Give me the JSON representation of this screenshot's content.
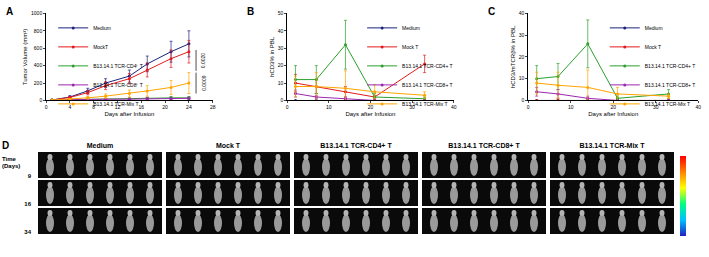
{
  "chart_data": [
    {
      "type": "line",
      "title": "A",
      "x_label": "Days after Infusion",
      "y_label": "Tumor Volume (mm³)",
      "xlim": [
        0,
        28
      ],
      "xticks": [
        0,
        4,
        8,
        12,
        16,
        20,
        24,
        28
      ],
      "ylim": [
        0,
        1000
      ],
      "yticks": [
        0,
        200,
        400,
        600,
        800,
        1000
      ],
      "legend": "upper left",
      "marker": "circle",
      "annotations": [
        "0.0020",
        "0.0009"
      ],
      "x": [
        1,
        4,
        7,
        10,
        14,
        17,
        21,
        24
      ],
      "series": [
        {
          "name": "Medium",
          "color": "#1a237e",
          "values": [
            5,
            40,
            110,
            200,
            280,
            420,
            560,
            650
          ],
          "errors": [
            3,
            15,
            30,
            50,
            70,
            90,
            120,
            150
          ]
        },
        {
          "name": "MockT",
          "color": "#e41a1c",
          "values": [
            5,
            35,
            90,
            170,
            250,
            350,
            480,
            560
          ],
          "errors": [
            3,
            12,
            25,
            45,
            60,
            80,
            100,
            130
          ]
        },
        {
          "name": "B13.14.1 TCR-CD4⁺ T",
          "color": "#2ca02c",
          "values": [
            5,
            10,
            15,
            15,
            20,
            25,
            30,
            30
          ],
          "errors": [
            2,
            5,
            8,
            8,
            10,
            12,
            15,
            15
          ]
        },
        {
          "name": "B13.14.1 TCR-CD8⁺ T",
          "color": "#9c27b0",
          "values": [
            5,
            10,
            10,
            15,
            15,
            20,
            20,
            25
          ],
          "errors": [
            2,
            5,
            5,
            8,
            8,
            10,
            10,
            12
          ]
        },
        {
          "name": "B13.14.1 TCR-Mix T",
          "color": "#ffa500",
          "values": [
            5,
            15,
            30,
            50,
            80,
            110,
            150,
            200
          ],
          "errors": [
            3,
            8,
            15,
            25,
            40,
            60,
            80,
            120
          ]
        }
      ]
    },
    {
      "type": "line",
      "title": "B",
      "x_label": "Days after Infusion",
      "y_label": "hCD3% in PBL",
      "xlim": [
        0,
        40
      ],
      "xticks": [
        0,
        10,
        20,
        30,
        40
      ],
      "ylim": [
        0,
        50
      ],
      "yticks": [
        0,
        10,
        20,
        30,
        40,
        50
      ],
      "legend": "upper right",
      "marker": "circle",
      "x": [
        2,
        7,
        14,
        21,
        33
      ],
      "series": [
        {
          "name": "Medium",
          "color": "#1a237e",
          "values": [
            0,
            0,
            0,
            0,
            0
          ],
          "errors": [
            0,
            0,
            0,
            0,
            0
          ]
        },
        {
          "name": "Mock T",
          "color": "#e41a1c",
          "values": [
            10,
            8,
            5,
            2,
            21
          ],
          "errors": [
            5,
            4,
            3,
            1,
            5
          ]
        },
        {
          "name": "B13.14.1 TCR-CD4+ T",
          "color": "#2ca02c",
          "values": [
            12,
            12,
            32,
            2,
            1
          ],
          "errors": [
            8,
            8,
            14,
            2,
            1
          ]
        },
        {
          "name": "B13.14.1 TCR-CD8+ T",
          "color": "#9c27b0",
          "values": [
            4,
            2,
            1,
            0,
            0
          ],
          "errors": [
            2,
            1,
            1,
            0,
            0
          ]
        },
        {
          "name": "B13.14.1 TCR-Mix T",
          "color": "#ffa500",
          "values": [
            8,
            8,
            7,
            5,
            3
          ],
          "errors": [
            6,
            8,
            10,
            4,
            2
          ]
        }
      ]
    },
    {
      "type": "line",
      "title": "C",
      "x_label": "Days after Infusion",
      "y_label": "hCD3/mTCRβ% in PBL",
      "xlim": [
        0,
        40
      ],
      "xticks": [
        0,
        10,
        20,
        30,
        40
      ],
      "ylim": [
        0,
        40
      ],
      "yticks": [
        0,
        10,
        20,
        30,
        40
      ],
      "legend": "upper right",
      "marker": "circle",
      "x": [
        2,
        7,
        14,
        21,
        33
      ],
      "series": [
        {
          "name": "Medium",
          "color": "#1a237e",
          "values": [
            0,
            0,
            0,
            0,
            0
          ],
          "errors": [
            0,
            0,
            0,
            0,
            0
          ]
        },
        {
          "name": "Mock T",
          "color": "#e41a1c",
          "values": [
            0,
            0,
            0,
            0,
            0
          ],
          "errors": [
            0,
            0,
            0,
            0,
            0
          ]
        },
        {
          "name": "B13.14.1 TCR-CD4+ T",
          "color": "#2ca02c",
          "values": [
            10,
            11,
            26,
            1,
            3
          ],
          "errors": [
            6,
            6,
            11,
            1,
            2
          ]
        },
        {
          "name": "B13.14.1 TCR-CD8+ T",
          "color": "#9c27b0",
          "values": [
            4,
            3,
            1,
            0,
            0
          ],
          "errors": [
            2,
            2,
            1,
            0,
            0
          ]
        },
        {
          "name": "B13.14.1 TCR-Mix T",
          "color": "#ffa500",
          "values": [
            8,
            7,
            6,
            3,
            2
          ],
          "errors": [
            5,
            6,
            8,
            3,
            1
          ]
        }
      ]
    }
  ],
  "image_panel": {
    "title": "D",
    "row_label": "Time (Days)",
    "rows": [
      "9",
      "16",
      "34"
    ],
    "groups": [
      {
        "name": "Medium",
        "mice": 6
      },
      {
        "name": "Mock T",
        "mice": 6
      },
      {
        "name": "B13.14.1 TCR-CD4+ T",
        "mice": 6
      },
      {
        "name": "B13.14.1 TCR-CD8+ T",
        "mice": 6
      },
      {
        "name": "B13.14.1 TCR-Mix T",
        "mice": 6
      }
    ]
  }
}
